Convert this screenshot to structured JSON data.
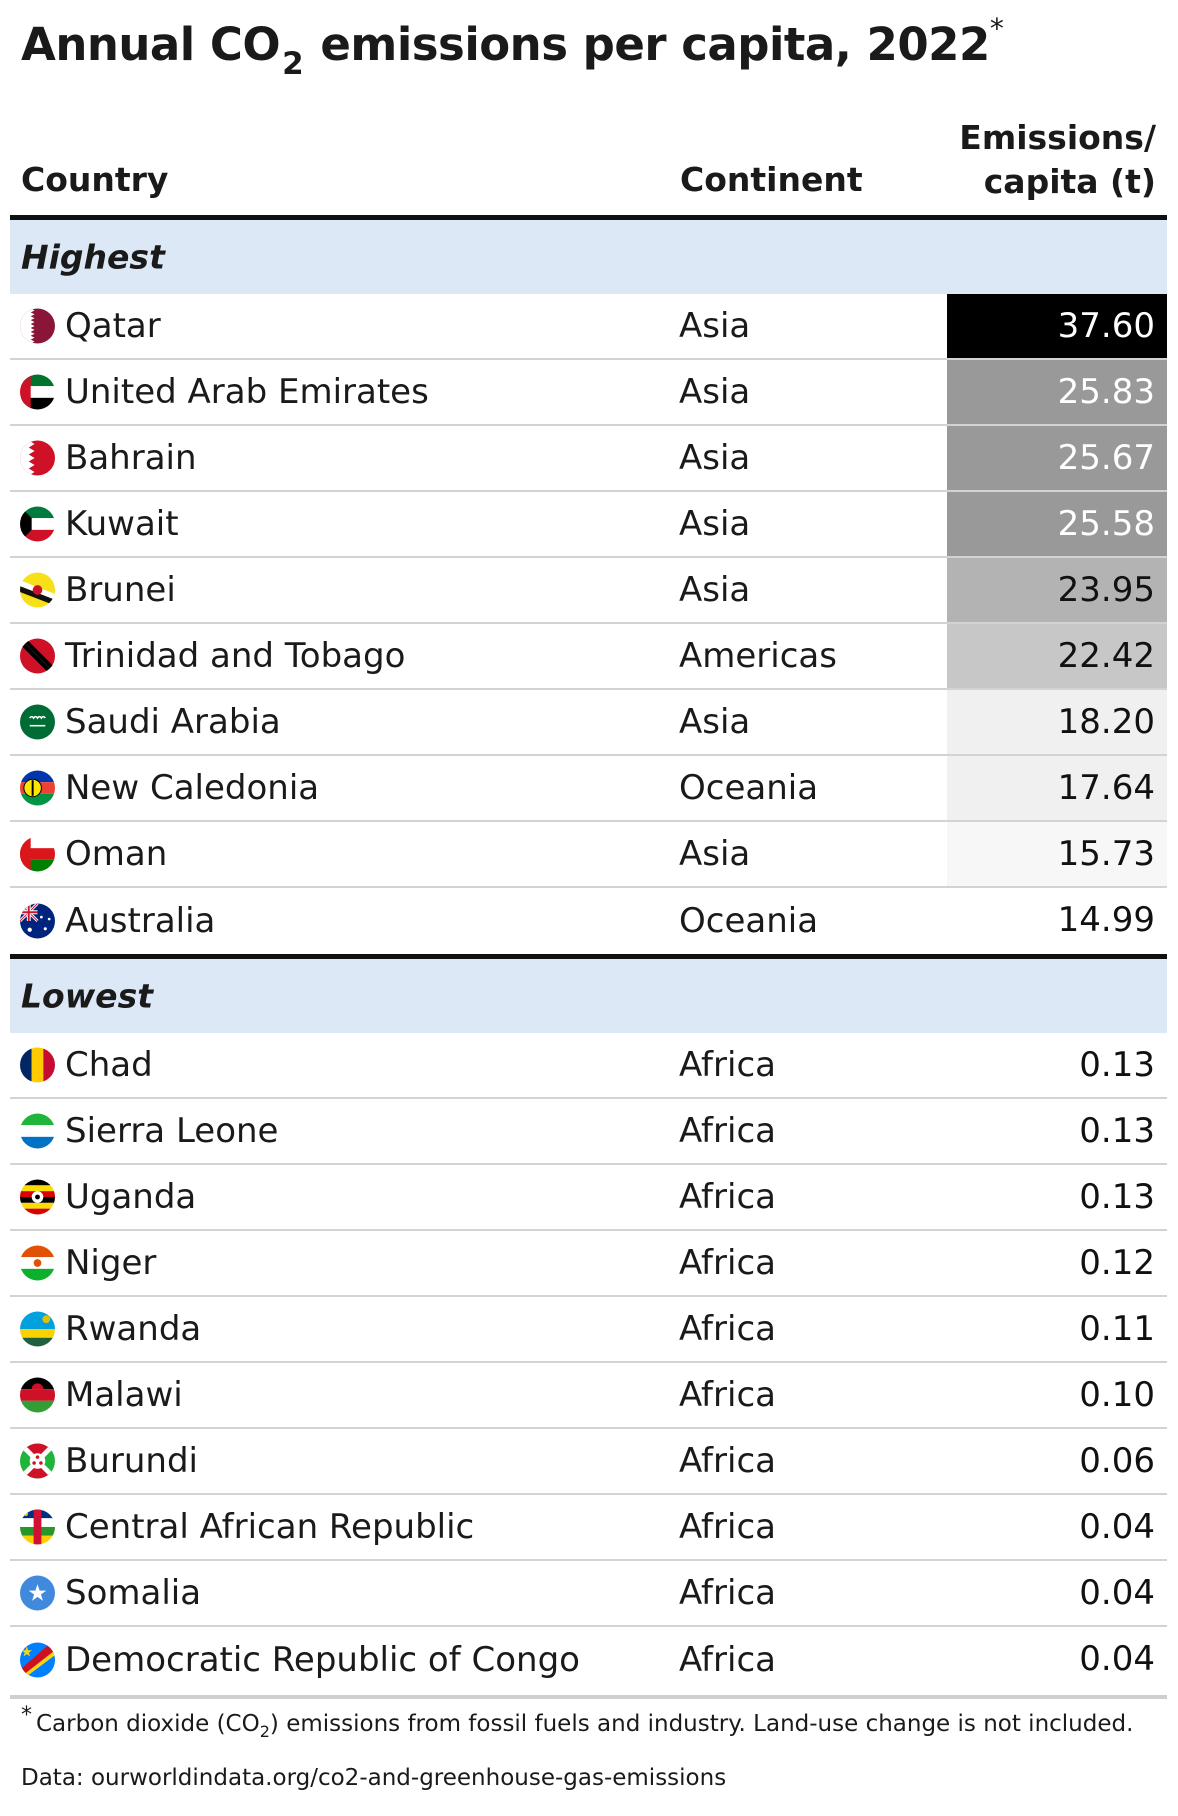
{
  "title": {
    "prefix": "Annual CO",
    "subscript": "2",
    "suffix": " emissions per capita, 2022",
    "marker": "*"
  },
  "columns": {
    "country": "Country",
    "continent": "Continent",
    "emissions_line1": "Emissions/",
    "emissions_line2": "capita (t)"
  },
  "sections": {
    "highest": "Highest",
    "lowest": "Lowest"
  },
  "footnote": {
    "marker": "*",
    "text_before": "Carbon dioxide (CO",
    "subscript": "2",
    "text_after": ") emissions from fossil fuels and industry. Land-use change is not included."
  },
  "source": "Data: ourworldindata.org/co2-and-greenhouse-gas-emissions",
  "chart_data": {
    "type": "table",
    "value_unit": "t",
    "highest": [
      {
        "country": "Qatar",
        "continent": "Asia",
        "value": "37.60",
        "flag": "qatar-flag-icon"
      },
      {
        "country": "United Arab Emirates",
        "continent": "Asia",
        "value": "25.83",
        "flag": "uae-flag-icon"
      },
      {
        "country": "Bahrain",
        "continent": "Asia",
        "value": "25.67",
        "flag": "bahrain-flag-icon"
      },
      {
        "country": "Kuwait",
        "continent": "Asia",
        "value": "25.58",
        "flag": "kuwait-flag-icon"
      },
      {
        "country": "Brunei",
        "continent": "Asia",
        "value": "23.95",
        "flag": "brunei-flag-icon"
      },
      {
        "country": "Trinidad and Tobago",
        "continent": "Americas",
        "value": "22.42",
        "flag": "trinidad-flag-icon"
      },
      {
        "country": "Saudi Arabia",
        "continent": "Asia",
        "value": "18.20",
        "flag": "saudi-flag-icon"
      },
      {
        "country": "New Caledonia",
        "continent": "Oceania",
        "value": "17.64",
        "flag": "new-caledonia-flag-icon"
      },
      {
        "country": "Oman",
        "continent": "Asia",
        "value": "15.73",
        "flag": "oman-flag-icon"
      },
      {
        "country": "Australia",
        "continent": "Oceania",
        "value": "14.99",
        "flag": "australia-flag-icon"
      }
    ],
    "lowest": [
      {
        "country": "Chad",
        "continent": "Africa",
        "value": "0.13",
        "flag": "chad-flag-icon"
      },
      {
        "country": "Sierra Leone",
        "continent": "Africa",
        "value": "0.13",
        "flag": "sierra-leone-flag-icon"
      },
      {
        "country": "Uganda",
        "continent": "Africa",
        "value": "0.13",
        "flag": "uganda-flag-icon"
      },
      {
        "country": "Niger",
        "continent": "Africa",
        "value": "0.12",
        "flag": "niger-flag-icon"
      },
      {
        "country": "Rwanda",
        "continent": "Africa",
        "value": "0.11",
        "flag": "rwanda-flag-icon"
      },
      {
        "country": "Malawi",
        "continent": "Africa",
        "value": "0.10",
        "flag": "malawi-flag-icon"
      },
      {
        "country": "Burundi",
        "continent": "Africa",
        "value": "0.06",
        "flag": "burundi-flag-icon"
      },
      {
        "country": "Central African Republic",
        "continent": "Africa",
        "value": "0.04",
        "flag": "car-flag-icon"
      },
      {
        "country": "Somalia",
        "continent": "Africa",
        "value": "0.04",
        "flag": "somalia-flag-icon"
      },
      {
        "country": "Democratic Republic of Congo",
        "continent": "Africa",
        "value": "0.04",
        "flag": "drc-flag-icon"
      }
    ]
  }
}
